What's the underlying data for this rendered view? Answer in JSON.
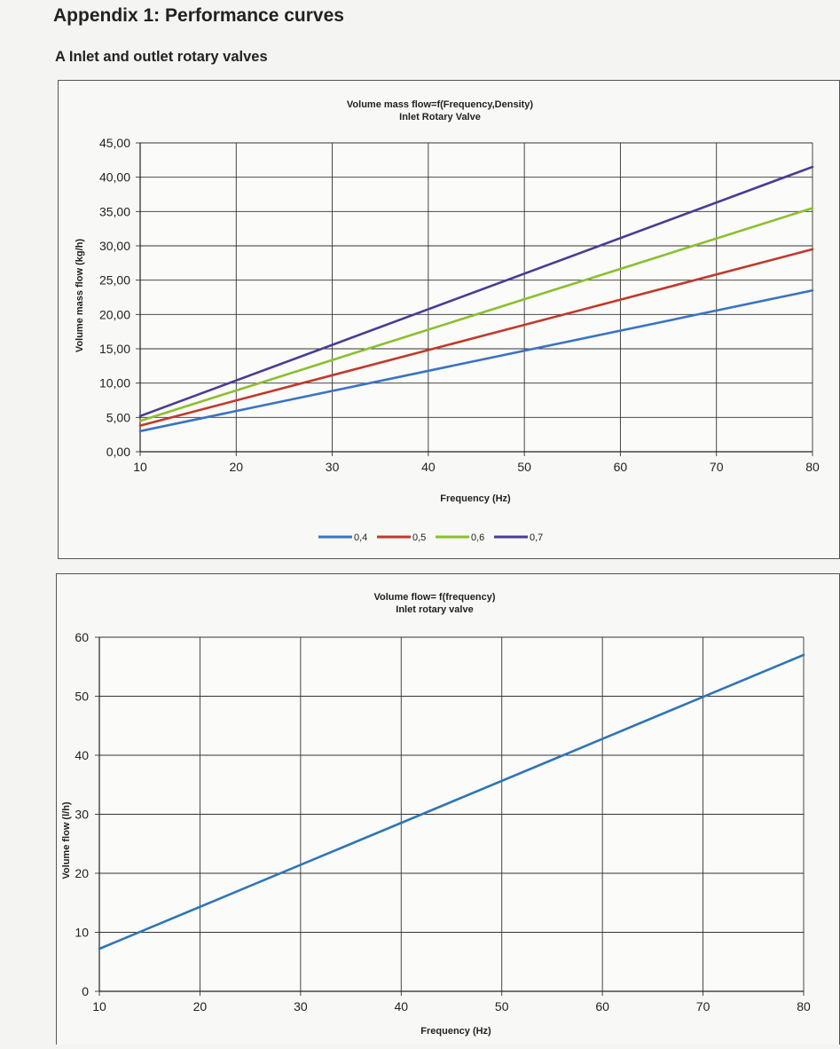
{
  "page": {
    "title": "Appendix 1: Performance curves",
    "section": "A Inlet and outlet rotary valves"
  },
  "chart_data": [
    {
      "type": "line",
      "title": "Volume mass flow=f(Frequency,Density)",
      "subtitle": "Inlet Rotary Valve",
      "xlabel": "Frequency (Hz)",
      "ylabel": "Volume mass flow (kg/h)",
      "xlim": [
        10,
        80
      ],
      "ylim": [
        0,
        45
      ],
      "x_ticks": [
        "10",
        "20",
        "30",
        "40",
        "50",
        "60",
        "70",
        "80"
      ],
      "y_ticks": [
        "0,00",
        "5,00",
        "10,00",
        "15,00",
        "20,00",
        "25,00",
        "30,00",
        "35,00",
        "40,00",
        "45,00"
      ],
      "grid": true,
      "legend": "bottom",
      "x": [
        10,
        80
      ],
      "series": [
        {
          "name": "0,4",
          "color": "#3b73c4",
          "values": [
            3.0,
            23.5
          ]
        },
        {
          "name": "0,5",
          "color": "#c0392b",
          "values": [
            3.8,
            29.5
          ]
        },
        {
          "name": "0,6",
          "color": "#8cbf2f",
          "values": [
            4.5,
            35.5
          ]
        },
        {
          "name": "0,7",
          "color": "#4b3b94",
          "values": [
            5.2,
            41.5
          ]
        }
      ]
    },
    {
      "type": "line",
      "title": "Volume flow= f(frequency)",
      "subtitle": "Inlet rotary valve",
      "xlabel": "Frequency (Hz)",
      "ylabel": "Volume flow (l/h)",
      "xlim": [
        10,
        80
      ],
      "ylim": [
        0,
        60
      ],
      "x_ticks": [
        "10",
        "20",
        "30",
        "40",
        "50",
        "60",
        "70",
        "80"
      ],
      "y_ticks": [
        "0",
        "10",
        "20",
        "30",
        "40",
        "50",
        "60"
      ],
      "grid": true,
      "x": [
        10,
        80
      ],
      "series": [
        {
          "color": "#2e75b6",
          "values": [
            7.2,
            57.0
          ]
        }
      ]
    }
  ]
}
